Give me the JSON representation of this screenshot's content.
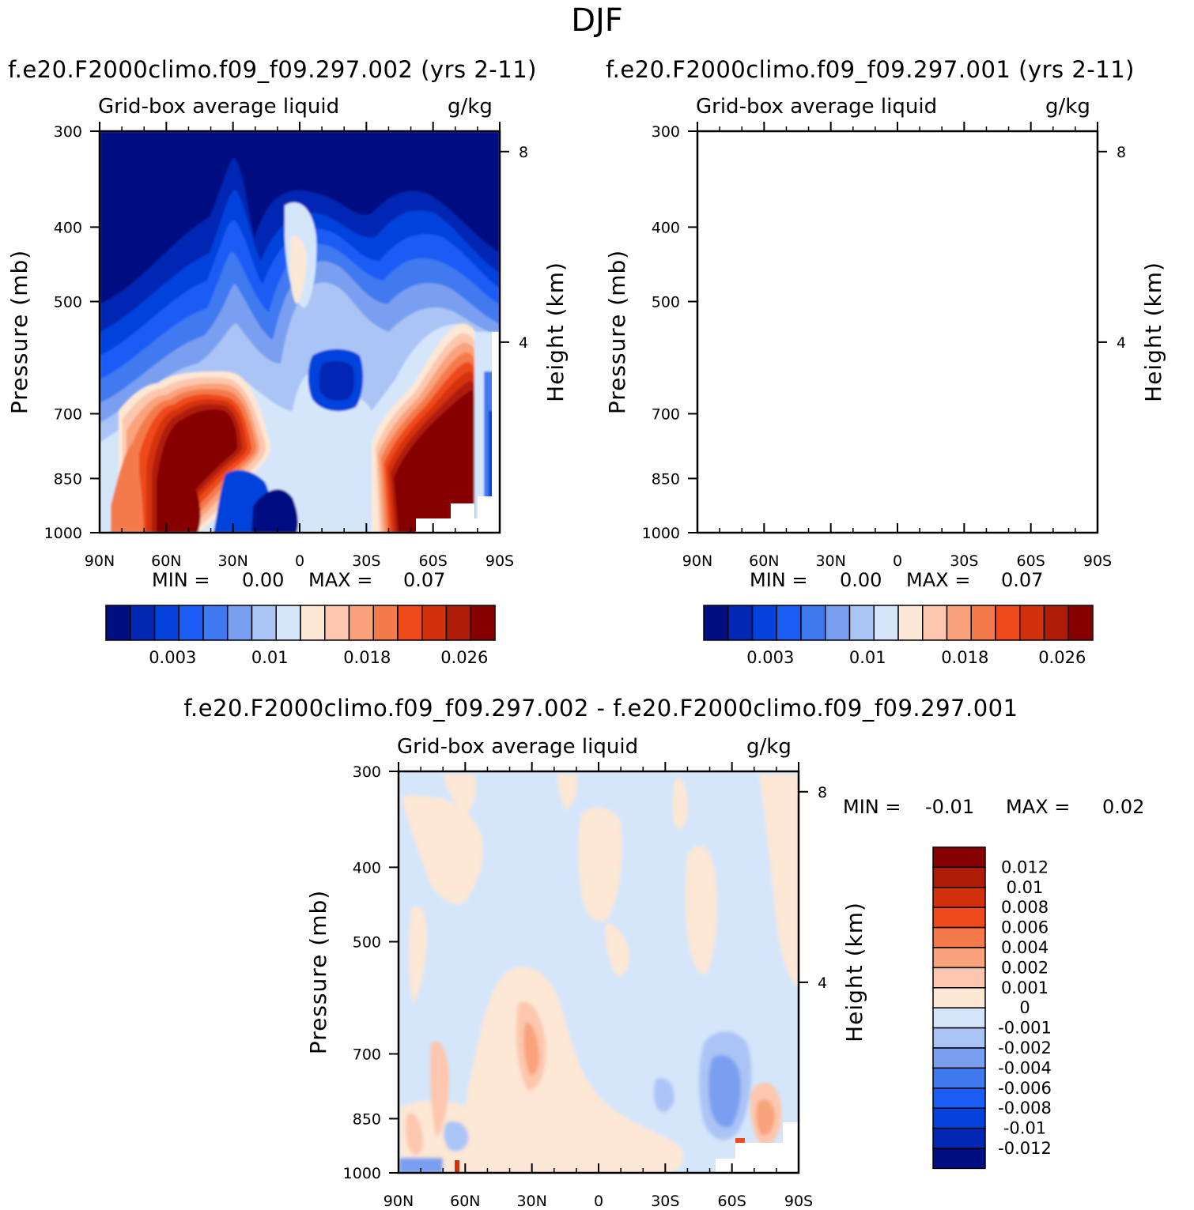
{
  "season_title": "DJF",
  "panels": [
    {
      "case_title": "f.e20.F2000climo.f09_f09.297.002 (yrs 2-11)",
      "variable": "Grid-box average liquid",
      "units": "g/kg",
      "min_label": "MIN =",
      "min_value": "0.00",
      "max_label": "MAX =",
      "max_value": "0.07"
    },
    {
      "case_title": "f.e20.F2000climo.f09_f09.297.001 (yrs 2-11)",
      "variable": "Grid-box average liquid",
      "units": "g/kg",
      "min_label": "MIN =",
      "min_value": "0.00",
      "max_label": "MAX =",
      "max_value": "0.07"
    }
  ],
  "diff_panel": {
    "title": "f.e20.F2000climo.f09_f09.297.002 - f.e20.F2000climo.f09_f09.297.001",
    "variable": "Grid-box average liquid",
    "units": "g/kg",
    "min_label": "MIN =",
    "min_value": "-0.01",
    "max_label": "MAX =",
    "max_value": "0.02"
  },
  "chart_data": [
    {
      "type": "heatmap",
      "title": "f.e20.F2000climo.f09_f09.297.002 (yrs 2-11)",
      "xlabel": "",
      "ylabel": "Pressure (mb)",
      "y2label": "Height (km)",
      "x_ticks": [
        "90N",
        "60N",
        "30N",
        "0",
        "30S",
        "60S",
        "90S"
      ],
      "y_ticks": [
        300,
        400,
        500,
        700,
        850,
        1000
      ],
      "y2_ticks": [
        8,
        4
      ],
      "colorbar_labels": [
        "0.003",
        "0.01",
        "0.018",
        "0.026"
      ],
      "colorbar_colors": [
        "#000e82",
        "#0227b3",
        "#0542dc",
        "#1b5cf5",
        "#3f79f0",
        "#7a9ff0",
        "#abc4f6",
        "#d5e6fb",
        "#fde7d5",
        "#fcc7ae",
        "#f9a27c",
        "#f57a4b",
        "#ee4a1c",
        "#d3300d",
        "#ae1c08",
        "#870000"
      ],
      "min": 0.0,
      "max": 0.07
    },
    {
      "type": "heatmap",
      "title": "f.e20.F2000climo.f09_f09.297.001 (yrs 2-11)",
      "xlabel": "",
      "ylabel": "Pressure (mb)",
      "y2label": "Height (km)",
      "x_ticks": [
        "90N",
        "60N",
        "30N",
        "0",
        "30S",
        "60S",
        "90S"
      ],
      "y_ticks": [
        300,
        400,
        500,
        700,
        850,
        1000
      ],
      "y2_ticks": [
        8,
        4
      ],
      "colorbar_labels": [
        "0.003",
        "0.01",
        "0.018",
        "0.026"
      ],
      "colorbar_colors": [
        "#000e82",
        "#0227b3",
        "#0542dc",
        "#1b5cf5",
        "#3f79f0",
        "#7a9ff0",
        "#abc4f6",
        "#d5e6fb",
        "#fde7d5",
        "#fcc7ae",
        "#f9a27c",
        "#f57a4b",
        "#ee4a1c",
        "#d3300d",
        "#ae1c08",
        "#870000"
      ],
      "min": 0.0,
      "max": 0.07
    },
    {
      "type": "heatmap",
      "title": "f.e20.F2000climo.f09_f09.297.002 - f.e20.F2000climo.f09_f09.297.001",
      "xlabel": "",
      "ylabel": "Pressure (mb)",
      "y2label": "Height (km)",
      "x_ticks": [
        "90N",
        "60N",
        "30N",
        "0",
        "30S",
        "60S",
        "90S"
      ],
      "y_ticks": [
        300,
        400,
        500,
        700,
        850,
        1000
      ],
      "y2_ticks": [
        8,
        4
      ],
      "colorbar_labels": [
        "0.012",
        "0.01",
        "0.008",
        "0.006",
        "0.004",
        "0.002",
        "0.001",
        "0",
        "-0.001",
        "-0.002",
        "-0.004",
        "-0.006",
        "-0.008",
        "-0.01",
        "-0.012"
      ],
      "colorbar_colors": [
        "#870000",
        "#ae1c08",
        "#d3300d",
        "#ee4a1c",
        "#f57a4b",
        "#f9a27c",
        "#fcc7ae",
        "#fde7d5",
        "#d5e6fb",
        "#abc4f6",
        "#7a9ff0",
        "#3f79f0",
        "#1b5cf5",
        "#0542dc",
        "#0227b3",
        "#000e82"
      ],
      "min": -0.01,
      "max": 0.02
    }
  ]
}
